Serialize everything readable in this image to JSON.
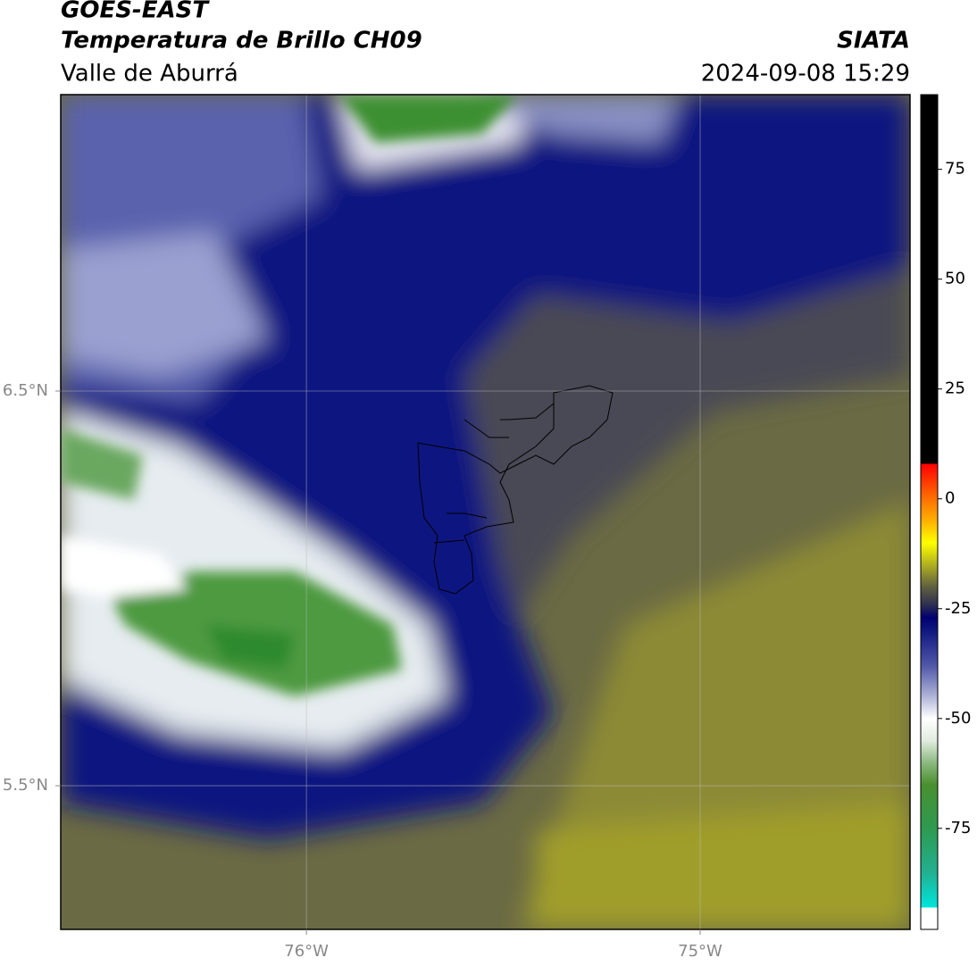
{
  "header": {
    "title": "GOES-EAST",
    "subtitle": "Temperatura de Brillo CH09",
    "region": "Valle de Aburrá",
    "source": "SIATA",
    "timestamp": "2024-09-08 15:29"
  },
  "map": {
    "xlim": [
      -76.624,
      -74.467
    ],
    "ylim": [
      5.136,
      7.251
    ],
    "xticks": [
      {
        "value": -76,
        "label": "76°W"
      },
      {
        "value": -75,
        "label": "75°W"
      }
    ],
    "yticks": [
      {
        "value": 6.5,
        "label": "6.5°N"
      },
      {
        "value": 5.5,
        "label": "5.5°N"
      }
    ],
    "grid": true
  },
  "colorbar": {
    "lim": [
      -98,
      92
    ],
    "ticks": [
      75,
      50,
      25,
      0,
      -25,
      -50,
      -75
    ],
    "stops": [
      {
        "value": -98,
        "color": "#ffffff"
      },
      {
        "value": -93,
        "color": "#ffffff"
      },
      {
        "value": -93,
        "color": "#00e5dc"
      },
      {
        "value": -85,
        "color": "#22b090"
      },
      {
        "value": -75,
        "color": "#2e9a50"
      },
      {
        "value": -65,
        "color": "#4a9030"
      },
      {
        "value": -60,
        "color": "#8cba80"
      },
      {
        "value": -55,
        "color": "#e2ece0"
      },
      {
        "value": -50,
        "color": "#ffffff"
      },
      {
        "value": -45,
        "color": "#b0b4d8"
      },
      {
        "value": -38,
        "color": "#5058a8"
      },
      {
        "value": -30,
        "color": "#101880"
      },
      {
        "value": -27,
        "color": "#000070"
      },
      {
        "value": -24,
        "color": "#303050"
      },
      {
        "value": -20,
        "color": "#606040"
      },
      {
        "value": -15,
        "color": "#b0b020"
      },
      {
        "value": -10,
        "color": "#ffff00"
      },
      {
        "value": -5,
        "color": "#ffb000"
      },
      {
        "value": 0,
        "color": "#ff7000"
      },
      {
        "value": 8,
        "color": "#ff0000"
      },
      {
        "value": 8,
        "color": "#000000"
      },
      {
        "value": 92,
        "color": "#000000"
      }
    ]
  }
}
